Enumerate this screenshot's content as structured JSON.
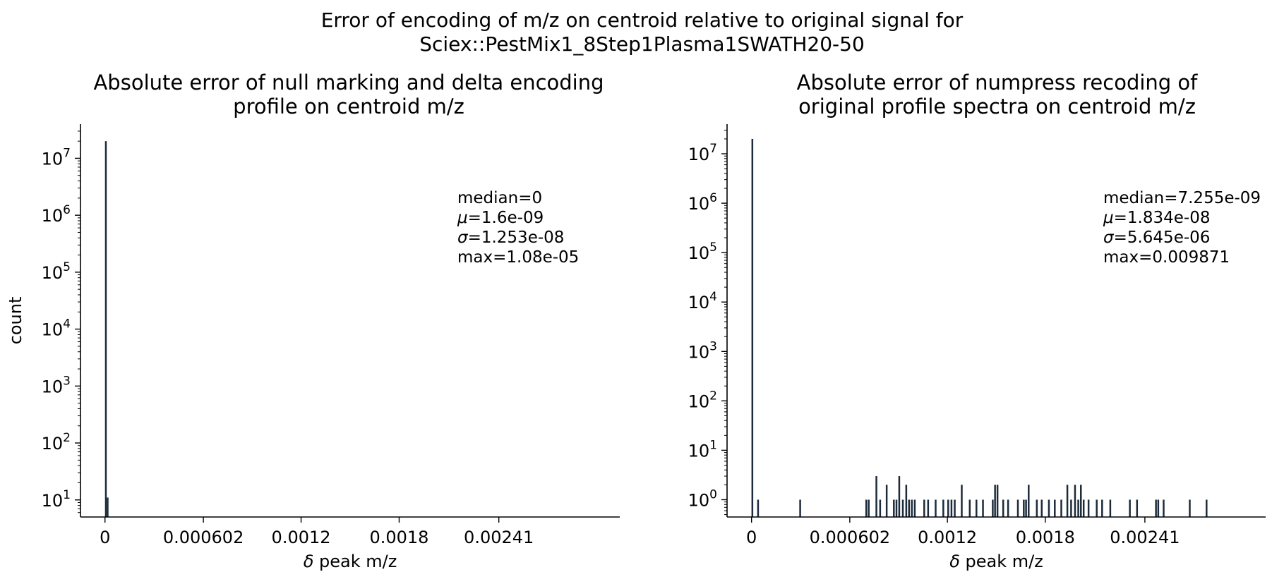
{
  "suptitle": {
    "line1": "Error of encoding of m/z on centroid relative to original signal for",
    "line2": "Sciex::PestMix1_8Step1Plasma1SWATH20-50"
  },
  "colors": {
    "bar": "#1c2b3a",
    "axis": "#000000"
  },
  "chart_data": [
    {
      "type": "bar",
      "title_line1": "Absolute error of null marking and delta encoding",
      "title_line2": "profile on centroid m/z",
      "xlabel_prefix": "δ",
      "xlabel_rest": " peak m/z",
      "ylabel": "count",
      "yscale": "log",
      "xlim": [
        -0.00015,
        0.00315
      ],
      "ylim_exp": [
        0.7,
        7.6
      ],
      "xticks": [
        0,
        0.000602,
        0.0012,
        0.0018,
        0.00241
      ],
      "xtick_labels": [
        "0",
        "0.000602",
        "0.0012",
        "0.0018",
        "0.00241"
      ],
      "yticks_exp": [
        1,
        2,
        3,
        4,
        5,
        6,
        7
      ],
      "bar_width": 1.08e-05,
      "bars": [
        {
          "x": 5.4e-06,
          "y": 20000000
        },
        {
          "x": 1.62e-05,
          "y": 11
        }
      ],
      "stats": [
        "median=0",
        "μ=1.6e-09",
        "σ=1.253e-08",
        "max=1.08e-05"
      ]
    },
    {
      "type": "bar",
      "title_line1": "Absolute error of numpress recoding of",
      "title_line2": "original profile spectra on centroid m/z",
      "xlabel_prefix": "δ",
      "xlabel_rest": " peak m/z",
      "ylabel": "",
      "yscale": "log",
      "xlim": [
        -0.00015,
        0.00315
      ],
      "ylim_exp": [
        -0.35,
        7.6
      ],
      "xticks": [
        0,
        0.000602,
        0.0012,
        0.0018,
        0.00241
      ],
      "xtick_labels": [
        "0",
        "0.000602",
        "0.0012",
        "0.0018",
        "0.00241"
      ],
      "yticks_exp": [
        0,
        1,
        2,
        3,
        4,
        5,
        6,
        7
      ],
      "bar_width": 1.08e-05,
      "bars": [
        {
          "x": 5e-06,
          "y": 20000000
        },
        {
          "x": 4e-05,
          "y": 1
        },
        {
          "x": 0.000298,
          "y": 1
        },
        {
          "x": 0.000703,
          "y": 1
        },
        {
          "x": 0.000718,
          "y": 1
        },
        {
          "x": 0.000765,
          "y": 3
        },
        {
          "x": 0.000788,
          "y": 1
        },
        {
          "x": 0.000828,
          "y": 2
        },
        {
          "x": 0.000872,
          "y": 1
        },
        {
          "x": 0.000888,
          "y": 1
        },
        {
          "x": 0.000905,
          "y": 3
        },
        {
          "x": 0.000927,
          "y": 1
        },
        {
          "x": 0.000948,
          "y": 2
        },
        {
          "x": 0.000965,
          "y": 1
        },
        {
          "x": 0.000982,
          "y": 1
        },
        {
          "x": 0.001,
          "y": 1
        },
        {
          "x": 0.001058,
          "y": 1
        },
        {
          "x": 0.001082,
          "y": 1
        },
        {
          "x": 0.001128,
          "y": 1
        },
        {
          "x": 0.001175,
          "y": 1
        },
        {
          "x": 0.001205,
          "y": 1
        },
        {
          "x": 0.001225,
          "y": 1
        },
        {
          "x": 0.001245,
          "y": 1
        },
        {
          "x": 0.001288,
          "y": 2
        },
        {
          "x": 0.001337,
          "y": 1
        },
        {
          "x": 0.001378,
          "y": 1
        },
        {
          "x": 0.001418,
          "y": 1
        },
        {
          "x": 0.001478,
          "y": 1
        },
        {
          "x": 0.001492,
          "y": 2
        },
        {
          "x": 0.001507,
          "y": 2
        },
        {
          "x": 0.001542,
          "y": 1
        },
        {
          "x": 0.001572,
          "y": 1
        },
        {
          "x": 0.001632,
          "y": 1
        },
        {
          "x": 0.001668,
          "y": 1
        },
        {
          "x": 0.001682,
          "y": 1
        },
        {
          "x": 0.001698,
          "y": 2
        },
        {
          "x": 0.001748,
          "y": 1
        },
        {
          "x": 0.001778,
          "y": 1
        },
        {
          "x": 0.001822,
          "y": 1
        },
        {
          "x": 0.001858,
          "y": 1
        },
        {
          "x": 0.001898,
          "y": 1
        },
        {
          "x": 0.001935,
          "y": 2
        },
        {
          "x": 0.001958,
          "y": 1
        },
        {
          "x": 0.001982,
          "y": 2
        },
        {
          "x": 0.002002,
          "y": 1
        },
        {
          "x": 0.002018,
          "y": 2
        },
        {
          "x": 0.002035,
          "y": 1
        },
        {
          "x": 0.002065,
          "y": 1
        },
        {
          "x": 0.002115,
          "y": 1
        },
        {
          "x": 0.002148,
          "y": 1
        },
        {
          "x": 0.002198,
          "y": 1
        },
        {
          "x": 0.002318,
          "y": 1
        },
        {
          "x": 0.002362,
          "y": 1
        },
        {
          "x": 0.002478,
          "y": 1
        },
        {
          "x": 0.002492,
          "y": 1
        },
        {
          "x": 0.002525,
          "y": 1
        },
        {
          "x": 0.002685,
          "y": 1
        },
        {
          "x": 0.002788,
          "y": 1
        }
      ],
      "stats": [
        "median=7.255e-09",
        "μ=1.834e-08",
        "σ=5.645e-06",
        "max=0.009871"
      ]
    }
  ]
}
